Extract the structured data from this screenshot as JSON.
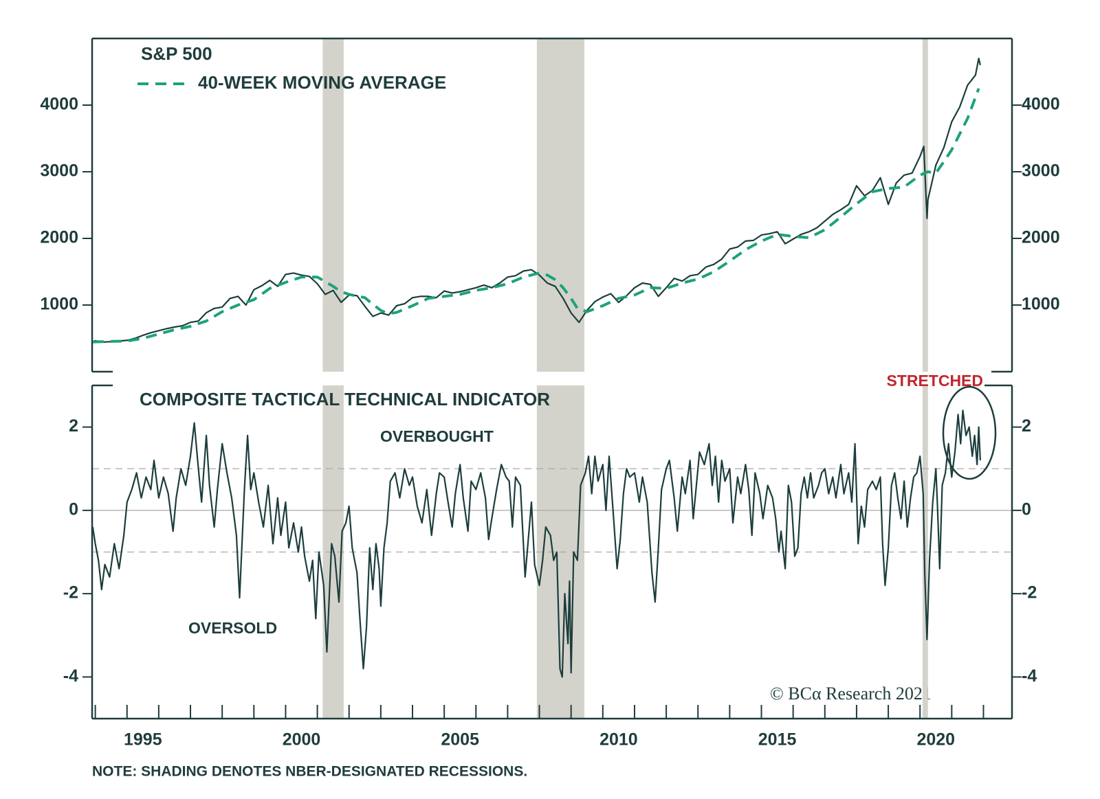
{
  "chart_data": [
    {
      "type": "line",
      "title": "S&P 500",
      "xlim": [
        1993.9,
        2022.9
      ],
      "ylim": [
        0,
        5000
      ],
      "yticks": [
        1000,
        2000,
        3000,
        4000
      ],
      "shading": [
        [
          2001.17,
          2001.83
        ],
        [
          2007.92,
          2009.42
        ],
        [
          2020.08,
          2020.25
        ]
      ],
      "shading_color": "#d3d3cb",
      "series": [
        {
          "name": "S&P 500",
          "color": "#1c3d3d",
          "dashed": false,
          "legend_marker": false,
          "x": [
            1993.92,
            1994.0,
            1994.25,
            1994.5,
            1994.75,
            1995.0,
            1995.25,
            1995.5,
            1995.75,
            1996.0,
            1996.25,
            1996.5,
            1996.75,
            1997.0,
            1997.25,
            1997.5,
            1997.75,
            1998.0,
            1998.25,
            1998.5,
            1998.75,
            1999.0,
            1999.25,
            1999.5,
            1999.75,
            2000.0,
            2000.25,
            2000.5,
            2000.75,
            2001.0,
            2001.25,
            2001.5,
            2001.75,
            2002.0,
            2002.25,
            2002.5,
            2002.75,
            2003.0,
            2003.25,
            2003.5,
            2003.75,
            2004.0,
            2004.25,
            2004.5,
            2004.75,
            2005.0,
            2005.25,
            2005.5,
            2005.75,
            2006.0,
            2006.25,
            2006.5,
            2006.75,
            2007.0,
            2007.25,
            2007.5,
            2007.75,
            2008.0,
            2008.25,
            2008.5,
            2008.75,
            2009.0,
            2009.25,
            2009.5,
            2009.75,
            2010.0,
            2010.25,
            2010.5,
            2010.75,
            2011.0,
            2011.25,
            2011.5,
            2011.75,
            2012.0,
            2012.25,
            2012.5,
            2012.75,
            2013.0,
            2013.25,
            2013.5,
            2013.75,
            2014.0,
            2014.25,
            2014.5,
            2014.75,
            2015.0,
            2015.25,
            2015.5,
            2015.75,
            2016.0,
            2016.25,
            2016.5,
            2016.75,
            2017.0,
            2017.25,
            2017.5,
            2017.75,
            2018.0,
            2018.25,
            2018.5,
            2018.75,
            2019.0,
            2019.25,
            2019.5,
            2019.75,
            2020.0,
            2020.12,
            2020.22,
            2020.25,
            2020.5,
            2020.75,
            2021.0,
            2021.25,
            2021.5,
            2021.75,
            2021.85,
            2021.9
          ],
          "values": [
            450,
            465,
            445,
            450,
            460,
            470,
            500,
            545,
            585,
            615,
            645,
            670,
            690,
            740,
            760,
            885,
            950,
            970,
            1100,
            1130,
            1000,
            1230,
            1290,
            1370,
            1280,
            1460,
            1480,
            1450,
            1430,
            1320,
            1160,
            1220,
            1040,
            1150,
            1140,
            980,
            830,
            880,
            850,
            990,
            1020,
            1110,
            1130,
            1130,
            1110,
            1210,
            1180,
            1200,
            1230,
            1260,
            1300,
            1260,
            1330,
            1420,
            1440,
            1510,
            1530,
            1450,
            1330,
            1280,
            1100,
            880,
            740,
            920,
            1050,
            1120,
            1170,
            1040,
            1140,
            1260,
            1330,
            1310,
            1130,
            1260,
            1400,
            1360,
            1440,
            1460,
            1570,
            1610,
            1690,
            1840,
            1870,
            1960,
            1970,
            2050,
            2070,
            2100,
            1920,
            1990,
            2060,
            2100,
            2160,
            2260,
            2360,
            2430,
            2510,
            2790,
            2640,
            2720,
            2910,
            2510,
            2830,
            2950,
            2980,
            3230,
            3380,
            2300,
            2580,
            3100,
            3360,
            3750,
            3970,
            4300,
            4450,
            4700,
            4600
          ]
        },
        {
          "name": "40-WEEK MOVING AVERAGE",
          "color": "#1ba37a",
          "dashed": true,
          "legend_marker": true,
          "x": [
            1993.92,
            1994.5,
            1995.0,
            1995.5,
            1996.0,
            1996.5,
            1997.0,
            1997.5,
            1998.0,
            1998.5,
            1999.0,
            1999.5,
            2000.0,
            2000.5,
            2001.0,
            2001.25,
            2001.5,
            2001.75,
            2002.0,
            2002.5,
            2002.75,
            2003.0,
            2003.25,
            2003.5,
            2004.0,
            2004.5,
            2005.0,
            2005.5,
            2006.0,
            2006.5,
            2007.0,
            2007.5,
            2008.0,
            2008.25,
            2008.5,
            2008.75,
            2009.0,
            2009.2,
            2009.5,
            2010.0,
            2010.5,
            2011.0,
            2011.5,
            2012.0,
            2012.5,
            2013.0,
            2013.5,
            2014.0,
            2014.5,
            2015.0,
            2015.5,
            2016.0,
            2016.5,
            2017.0,
            2017.5,
            2018.0,
            2018.5,
            2019.0,
            2019.5,
            2020.0,
            2020.25,
            2020.5,
            2020.75,
            2021.0,
            2021.5,
            2021.85
          ],
          "values": [
            445,
            455,
            460,
            500,
            565,
            630,
            680,
            760,
            900,
            1000,
            1080,
            1250,
            1340,
            1420,
            1420,
            1350,
            1280,
            1200,
            1160,
            1110,
            1010,
            920,
            870,
            890,
            990,
            1100,
            1130,
            1160,
            1220,
            1260,
            1320,
            1420,
            1480,
            1450,
            1380,
            1260,
            1100,
            950,
            900,
            990,
            1100,
            1150,
            1260,
            1250,
            1330,
            1390,
            1500,
            1660,
            1830,
            1960,
            2060,
            2030,
            2010,
            2130,
            2320,
            2520,
            2700,
            2750,
            2770,
            2950,
            3000,
            2980,
            3150,
            3330,
            3800,
            4250
          ]
        }
      ]
    },
    {
      "type": "line",
      "title": "COMPOSITE TACTICAL TECHNICAL INDICATOR",
      "xlim": [
        1993.9,
        2022.9
      ],
      "ylim": [
        -5,
        3
      ],
      "yticks": [
        -4,
        -2,
        0,
        2
      ],
      "xticks": [
        1994,
        1995,
        1996,
        1997,
        1998,
        1999,
        2000,
        2001,
        2002,
        2003,
        2004,
        2005,
        2006,
        2007,
        2008,
        2009,
        2010,
        2011,
        2012,
        2013,
        2014,
        2015,
        2016,
        2017,
        2018,
        2019,
        2020,
        2021,
        2022
      ],
      "xtick_labels": [
        {
          "value": 1995.5,
          "label": "1995"
        },
        {
          "value": 2000.5,
          "label": "2000"
        },
        {
          "value": 2005.5,
          "label": "2005"
        },
        {
          "value": 2010.5,
          "label": "2010"
        },
        {
          "value": 2015.5,
          "label": "2015"
        },
        {
          "value": 2020.5,
          "label": "2020"
        }
      ],
      "hlines": [
        {
          "value": 1,
          "dashed": true
        },
        {
          "value": 0,
          "dashed": false
        },
        {
          "value": -1,
          "dashed": true
        }
      ],
      "shading": [
        [
          2001.17,
          2001.83
        ],
        [
          2007.92,
          2009.42
        ],
        [
          2020.08,
          2020.25
        ]
      ],
      "shading_color": "#d3d3cb",
      "annotations": [
        "OVERBOUGHT",
        "OVERSOLD",
        "STRETCHED"
      ],
      "series": [
        {
          "name": "COMPOSITE TACTICAL TECHNICAL INDICATOR",
          "color": "#1c3d3d",
          "x": [
            1993.92,
            1994.0,
            1994.1,
            1994.2,
            1994.3,
            1994.45,
            1994.6,
            1994.75,
            1994.9,
            1995.0,
            1995.15,
            1995.3,
            1995.45,
            1995.6,
            1995.75,
            1995.85,
            1996.0,
            1996.15,
            1996.3,
            1996.45,
            1996.55,
            1996.7,
            1996.85,
            1997.0,
            1997.12,
            1997.25,
            1997.35,
            1997.5,
            1997.6,
            1997.75,
            1997.85,
            1998.0,
            1998.15,
            1998.3,
            1998.45,
            1998.55,
            1998.7,
            1998.8,
            1998.9,
            1999.0,
            1999.15,
            1999.3,
            1999.45,
            1999.6,
            1999.75,
            1999.85,
            2000.0,
            2000.1,
            2000.25,
            2000.4,
            2000.5,
            2000.6,
            2000.75,
            2000.85,
            2000.95,
            2001.05,
            2001.2,
            2001.3,
            2001.45,
            2001.55,
            2001.68,
            2001.78,
            2001.9,
            2002.0,
            2002.1,
            2002.25,
            2002.35,
            2002.45,
            2002.55,
            2002.65,
            2002.75,
            2002.85,
            2002.95,
            2003.0,
            2003.1,
            2003.2,
            2003.3,
            2003.45,
            2003.6,
            2003.75,
            2003.9,
            2004.0,
            2004.15,
            2004.3,
            2004.45,
            2004.6,
            2004.75,
            2004.85,
            2005.0,
            2005.12,
            2005.25,
            2005.35,
            2005.5,
            2005.6,
            2005.75,
            2005.85,
            2006.0,
            2006.15,
            2006.3,
            2006.4,
            2006.5,
            2006.65,
            2006.8,
            2006.95,
            2007.05,
            2007.15,
            2007.25,
            2007.4,
            2007.55,
            2007.65,
            2007.75,
            2007.85,
            2008.0,
            2008.1,
            2008.2,
            2008.35,
            2008.45,
            2008.55,
            2008.65,
            2008.72,
            2008.8,
            2008.9,
            2008.95,
            2009.0,
            2009.08,
            2009.2,
            2009.3,
            2009.45,
            2009.55,
            2009.65,
            2009.75,
            2009.85,
            2010.0,
            2010.1,
            2010.2,
            2010.35,
            2010.45,
            2010.55,
            2010.65,
            2010.75,
            2010.85,
            2011.0,
            2011.15,
            2011.25,
            2011.4,
            2011.55,
            2011.65,
            2011.75,
            2011.85,
            2012.0,
            2012.1,
            2012.25,
            2012.35,
            2012.5,
            2012.6,
            2012.75,
            2012.85,
            2012.95,
            2013.05,
            2013.2,
            2013.35,
            2013.45,
            2013.55,
            2013.65,
            2013.75,
            2013.85,
            2014.0,
            2014.1,
            2014.25,
            2014.35,
            2014.5,
            2014.6,
            2014.7,
            2014.8,
            2014.95,
            2015.05,
            2015.2,
            2015.35,
            2015.45,
            2015.55,
            2015.62,
            2015.75,
            2015.85,
            2015.95,
            2016.05,
            2016.15,
            2016.25,
            2016.35,
            2016.45,
            2016.55,
            2016.65,
            2016.8,
            2016.9,
            2017.0,
            2017.12,
            2017.25,
            2017.35,
            2017.5,
            2017.6,
            2017.75,
            2017.85,
            2017.95,
            2018.05,
            2018.15,
            2018.25,
            2018.35,
            2018.5,
            2018.62,
            2018.75,
            2018.82,
            2018.9,
            2019.0,
            2019.1,
            2019.2,
            2019.3,
            2019.4,
            2019.5,
            2019.6,
            2019.7,
            2019.8,
            2019.9,
            2020.0,
            2020.1,
            2020.15,
            2020.22,
            2020.3,
            2020.4,
            2020.5,
            2020.55,
            2020.62,
            2020.7,
            2020.8,
            2020.9,
            2021.0,
            2021.1,
            2021.2,
            2021.28,
            2021.35,
            2021.45,
            2021.55,
            2021.65,
            2021.72,
            2021.8,
            2021.85,
            2021.9
          ],
          "values": [
            -0.4,
            -0.8,
            -1.2,
            -1.9,
            -1.3,
            -1.6,
            -0.8,
            -1.4,
            -0.6,
            0.2,
            0.5,
            0.9,
            0.3,
            0.8,
            0.5,
            1.2,
            0.3,
            0.8,
            0.4,
            -0.5,
            0.3,
            1.0,
            0.6,
            1.3,
            2.1,
            1.0,
            0.2,
            1.8,
            0.6,
            -0.4,
            0.5,
            1.6,
            0.9,
            0.3,
            -0.6,
            -2.1,
            0.5,
            1.8,
            0.5,
            0.9,
            0.2,
            -0.4,
            0.6,
            -0.8,
            0.3,
            -0.6,
            0.2,
            -0.9,
            -0.3,
            -1.0,
            -0.4,
            -1.1,
            -1.7,
            -1.2,
            -2.6,
            -1.0,
            -1.8,
            -3.4,
            -0.8,
            -1.1,
            -2.2,
            -0.5,
            -0.3,
            0.1,
            -0.9,
            -1.5,
            -2.7,
            -3.8,
            -2.8,
            -0.9,
            -1.9,
            -0.8,
            -1.4,
            -2.3,
            -0.9,
            -0.3,
            0.7,
            0.9,
            0.3,
            1.0,
            0.6,
            0.8,
            0.1,
            -0.3,
            0.5,
            -0.6,
            0.4,
            0.9,
            0.8,
            0.2,
            -0.4,
            0.4,
            1.1,
            0.3,
            -0.5,
            0.7,
            0.5,
            0.9,
            0.3,
            -0.7,
            -0.2,
            0.5,
            1.1,
            0.8,
            0.7,
            -0.4,
            0.8,
            0.6,
            -1.6,
            -0.7,
            0.2,
            -1.3,
            -1.8,
            -1.2,
            -0.4,
            -0.6,
            -1.2,
            -1.0,
            -3.8,
            -4.0,
            -2.0,
            -3.2,
            -1.7,
            -3.9,
            -1.0,
            -1.2,
            0.6,
            0.9,
            1.3,
            0.4,
            1.3,
            0.7,
            1.1,
            0.0,
            1.3,
            -0.3,
            -1.4,
            -0.7,
            0.4,
            1.0,
            0.8,
            0.9,
            0.2,
            0.8,
            0.2,
            -1.5,
            -2.2,
            -0.9,
            0.5,
            1.0,
            1.2,
            0.3,
            -0.5,
            0.8,
            0.4,
            1.2,
            -0.2,
            0.6,
            1.4,
            1.1,
            1.6,
            0.6,
            1.3,
            0.2,
            1.2,
            0.7,
            1.0,
            -0.3,
            0.8,
            0.4,
            1.1,
            0.5,
            -0.6,
            0.9,
            0.4,
            -0.2,
            0.6,
            0.3,
            -0.2,
            -1.0,
            -0.5,
            -1.4,
            0.6,
            0.2,
            -1.1,
            -0.9,
            0.4,
            0.8,
            0.3,
            0.9,
            0.3,
            0.6,
            0.9,
            1.0,
            0.4,
            0.8,
            0.3,
            1.1,
            0.4,
            0.9,
            0.2,
            1.6,
            -0.8,
            0.1,
            -0.4,
            0.5,
            0.7,
            0.5,
            0.8,
            -0.8,
            -1.8,
            -0.9,
            0.6,
            0.9,
            0.3,
            -0.2,
            0.7,
            -0.4,
            0.3,
            0.8,
            0.9,
            1.3,
            0.4,
            -1.5,
            -3.1,
            -1.2,
            0.2,
            1.0,
            0.1,
            -1.4,
            0.6,
            0.9,
            1.6,
            0.8,
            1.4,
            2.3,
            1.6,
            2.4,
            1.8,
            2.0,
            1.3,
            1.8,
            1.1,
            2.0,
            1.2
          ]
        }
      ]
    }
  ],
  "source": "© BCα Research 2021",
  "note": "NOTE: SHADING DENOTES NBER-DESIGNATED RECESSIONS."
}
